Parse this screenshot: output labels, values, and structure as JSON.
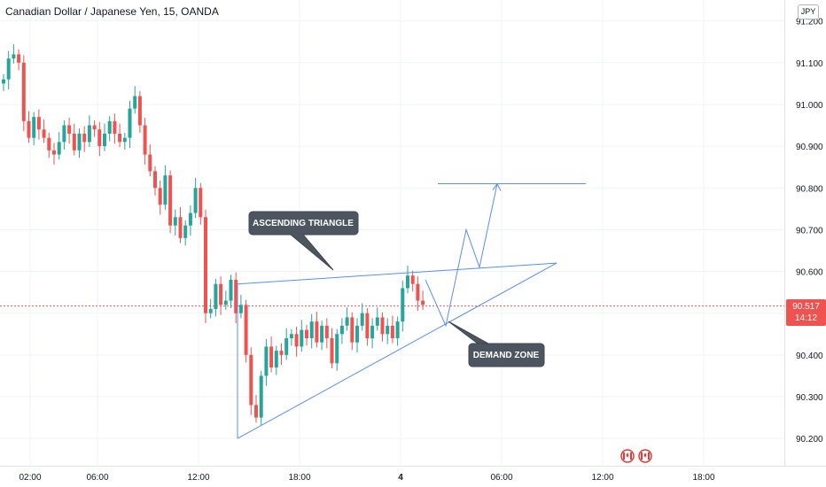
{
  "title": "Canadian Dollar / Japanese Yen, 15, OANDA",
  "currency": "JPY",
  "last_price": "90.517",
  "countdown": "14:12",
  "colors": {
    "up": "#26a69a",
    "down": "#ef5350",
    "drawing": "#5b8def",
    "callout": "#4d5660",
    "flag": "#e53935"
  },
  "chart_data": {
    "type": "candlestick",
    "title": "Canadian Dollar / Japanese Yen, 15, OANDA",
    "ylim": [
      90.15,
      91.22
    ],
    "y_ticks": [
      "91.200",
      "91.100",
      "91.000",
      "90.900",
      "90.800",
      "90.700",
      "90.600",
      "90.500",
      "90.400",
      "90.300",
      "90.200"
    ],
    "x_ticks": [
      "02:00",
      "06:00",
      "12:00",
      "18:00",
      "4",
      "06:00",
      "12:00",
      "18:00"
    ],
    "last_price": 90.517,
    "closes": [
      91.06,
      91.11,
      91.12,
      91.1,
      90.96,
      90.92,
      90.97,
      90.94,
      90.92,
      90.89,
      90.88,
      90.91,
      90.95,
      90.93,
      90.89,
      90.93,
      90.91,
      90.95,
      90.94,
      90.9,
      90.93,
      90.96,
      90.93,
      90.91,
      90.92,
      90.99,
      91.02,
      90.95,
      90.88,
      90.84,
      90.8,
      90.76,
      90.83,
      90.71,
      90.73,
      90.68,
      90.71,
      90.74,
      90.8,
      90.73,
      90.5,
      90.51,
      90.57,
      90.52,
      90.53,
      90.58,
      90.5,
      90.52,
      90.4,
      90.28,
      90.25,
      90.35,
      90.42,
      90.37,
      90.41,
      90.4,
      90.44,
      90.45,
      90.42,
      90.46,
      90.44,
      90.48,
      90.43,
      90.47,
      90.44,
      90.38,
      90.45,
      90.47,
      90.49,
      90.43,
      90.47,
      90.5,
      90.44,
      90.47,
      90.49,
      90.45,
      90.47,
      90.44,
      90.48,
      90.56,
      90.59,
      90.57,
      90.53,
      90.52
    ],
    "annotations": [
      {
        "label": "ASCENDING TRIANGLE"
      },
      {
        "label": "DEMAND ZONE"
      }
    ],
    "triangle": {
      "top_line": [
        90.57,
        90.62
      ],
      "lower_start": 90.2,
      "apex_price": 90.62
    },
    "projection": [
      90.47,
      90.7,
      90.61,
      90.81
    ],
    "target_price": 90.81
  }
}
